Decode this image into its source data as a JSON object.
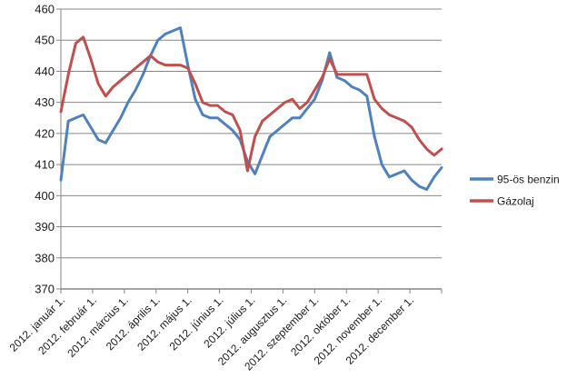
{
  "chart_data": {
    "type": "line",
    "title": "",
    "xlabel": "",
    "ylabel": "",
    "ylim": [
      370,
      460
    ],
    "y_ticks": [
      370,
      380,
      390,
      400,
      410,
      420,
      430,
      440,
      450,
      460
    ],
    "grid": true,
    "legend_position": "right",
    "x_tick_labels": [
      "2012. január 1.",
      "2012. február 1.",
      "2012. március 1.",
      "2012. április 1.",
      "2012. május 1.",
      "2012. június 1.",
      "2012. július 1.",
      "2012. augusztus 1.",
      "2012. szeptember 1.",
      "2012. október 1.",
      "2012. november 1.",
      "2012. december 1."
    ],
    "series": [
      {
        "name": "95-ös benzin",
        "color": "#4F81BD",
        "values": [
          405,
          424,
          425,
          426,
          422,
          418,
          417,
          421,
          425,
          430,
          434,
          439,
          445,
          450,
          452,
          453,
          454,
          442,
          431,
          426,
          425,
          425,
          423,
          421,
          418,
          411,
          407,
          413,
          419,
          421,
          423,
          425,
          425,
          428,
          431,
          437,
          446,
          438,
          437,
          435,
          434,
          432,
          419,
          410,
          406,
          407,
          408,
          405,
          403,
          402,
          406,
          409
        ]
      },
      {
        "name": "Gázolaj",
        "color": "#C0504D",
        "values": [
          427,
          439,
          449,
          451,
          444,
          436,
          432,
          435,
          437,
          439,
          441,
          443,
          445,
          443,
          442,
          442,
          442,
          441,
          436,
          430,
          429,
          429,
          427,
          426,
          421,
          408,
          419,
          424,
          426,
          428,
          430,
          431,
          428,
          430,
          434,
          438,
          444,
          439,
          439,
          439,
          439,
          439,
          431,
          428,
          426,
          425,
          424,
          422,
          418,
          415,
          413,
          415
        ]
      }
    ],
    "colors": {
      "grid": "#868686",
      "axis": "#868686",
      "tick_text": "#1a1a1a",
      "background": "#ffffff"
    }
  }
}
